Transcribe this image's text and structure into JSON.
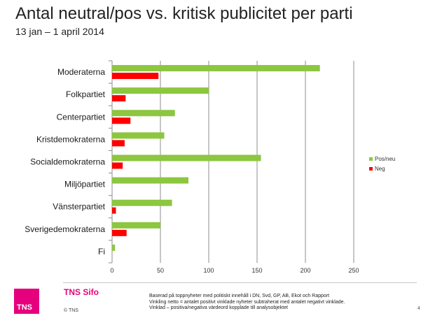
{
  "header": {
    "title": "Antal neutral/pos vs. kritisk publicitet per parti",
    "subtitle": "13 jan – 1 april 2014"
  },
  "chart_data": {
    "type": "bar",
    "orientation": "horizontal",
    "categories": [
      "Moderaterna",
      "Folkpartiet",
      "Centerpartiet",
      "Kristdemokraterna",
      "Socialdemokraterna",
      "Miljöpartiet",
      "Vänsterpartiet",
      "Sverigedemokraterna",
      "Fi"
    ],
    "series": [
      {
        "name": "Pos/neu",
        "color": "#8dc63f",
        "values": [
          215,
          100,
          65,
          54,
          154,
          79,
          62,
          50,
          3
        ]
      },
      {
        "name": "Neg",
        "color": "#ff0000",
        "values": [
          48,
          14,
          19,
          13,
          11,
          0,
          4,
          15,
          0
        ]
      }
    ],
    "xlim": [
      0,
      250
    ],
    "xticks": [
      0,
      50,
      100,
      150,
      200,
      250
    ],
    "xlabel": "",
    "ylabel": "",
    "grid": "vertical",
    "legend_position": "right"
  },
  "footer": {
    "logo_text": "TNS",
    "brand": "TNS Sifo",
    "copyright": "© TNS",
    "notes": [
      "Baserad på toppnyheter med politiskt innehåll i DN, Svd, GP, AB, Ekot och Rapport",
      "Vinkling netto = antalet positivt vinklade nyheter subtraherat med antalet negativt vinklade.",
      "Vinklad – positiva/negativa värdeord kopplade till analysobjektet"
    ],
    "page_number": "4"
  }
}
